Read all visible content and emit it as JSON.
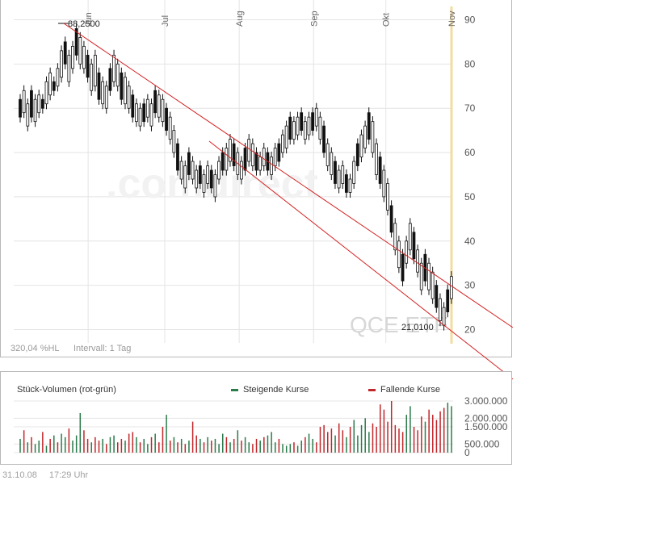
{
  "chart_data": [
    {
      "type": "candlestick",
      "title": "",
      "x_months": [
        "Jun",
        "Jul",
        "Aug",
        "Sep",
        "Okt",
        "Nov"
      ],
      "y_ticks": [
        20,
        30,
        40,
        50,
        60,
        70,
        80,
        90
      ],
      "ylim": [
        17,
        93
      ],
      "grid": true,
      "annotations": {
        "high": "88,2500",
        "low": "21,0100",
        "watermark": ".comdirect",
        "instrument": "QCE ETF",
        "range_info": "320,04 %HL",
        "interval": "Intervall: 1 Tag"
      },
      "candles": [
        [
          72,
          68
        ],
        [
          74,
          69
        ],
        [
          71,
          66
        ],
        [
          74,
          68
        ],
        [
          72,
          67
        ],
        [
          73,
          69
        ],
        [
          72,
          70
        ],
        [
          76,
          71
        ],
        [
          78,
          73
        ],
        [
          76,
          74
        ],
        [
          79,
          75
        ],
        [
          83,
          77
        ],
        [
          85,
          80
        ],
        [
          82,
          76
        ],
        [
          84,
          79
        ],
        [
          88,
          82
        ],
        [
          86,
          80
        ],
        [
          84,
          79
        ],
        [
          82,
          77
        ],
        [
          80,
          74
        ],
        [
          82,
          75
        ],
        [
          78,
          72
        ],
        [
          76,
          71
        ],
        [
          75,
          70
        ],
        [
          79,
          74
        ],
        [
          82,
          76
        ],
        [
          80,
          75
        ],
        [
          78,
          72
        ],
        [
          77,
          71
        ],
        [
          75,
          70
        ],
        [
          73,
          68
        ],
        [
          71,
          67
        ],
        [
          70,
          66
        ],
        [
          71,
          67
        ],
        [
          72,
          68
        ],
        [
          71,
          66
        ],
        [
          74,
          69
        ],
        [
          73,
          68
        ],
        [
          72,
          67
        ],
        [
          70,
          65
        ],
        [
          68,
          63
        ],
        [
          65,
          60
        ],
        [
          62,
          56
        ],
        [
          58,
          54
        ],
        [
          57,
          52
        ],
        [
          60,
          55
        ],
        [
          58,
          54
        ],
        [
          56,
          52
        ],
        [
          57,
          53
        ],
        [
          55,
          51
        ],
        [
          57,
          53
        ],
        [
          56,
          52
        ],
        [
          55,
          50
        ],
        [
          58,
          54
        ],
        [
          60,
          56
        ],
        [
          61,
          56
        ],
        [
          63,
          58
        ],
        [
          62,
          57
        ],
        [
          60,
          55
        ],
        [
          58,
          54
        ],
        [
          61,
          56
        ],
        [
          63,
          58
        ],
        [
          62,
          57
        ],
        [
          60,
          56
        ],
        [
          59,
          56
        ],
        [
          61,
          57
        ],
        [
          60,
          56
        ],
        [
          59,
          55
        ],
        [
          61,
          57
        ],
        [
          62,
          58
        ],
        [
          64,
          60
        ],
        [
          66,
          61
        ],
        [
          68,
          63
        ],
        [
          67,
          63
        ],
        [
          68,
          64
        ],
        [
          69,
          65
        ],
        [
          67,
          63
        ],
        [
          68,
          64
        ],
        [
          69,
          65
        ],
        [
          70,
          66
        ],
        [
          68,
          63
        ],
        [
          66,
          60
        ],
        [
          62,
          57
        ],
        [
          60,
          55
        ],
        [
          58,
          53
        ],
        [
          56,
          52
        ],
        [
          57,
          53
        ],
        [
          55,
          51
        ],
        [
          54,
          51
        ],
        [
          58,
          53
        ],
        [
          62,
          57
        ],
        [
          64,
          59
        ],
        [
          66,
          61
        ],
        [
          69,
          63
        ],
        [
          67,
          60
        ],
        [
          62,
          55
        ],
        [
          59,
          53
        ],
        [
          56,
          50
        ],
        [
          53,
          47
        ],
        [
          48,
          42
        ],
        [
          44,
          38
        ],
        [
          40,
          34
        ],
        [
          37,
          31
        ],
        [
          40,
          35
        ],
        [
          44,
          38
        ],
        [
          42,
          36
        ],
        [
          38,
          33
        ],
        [
          35,
          29
        ],
        [
          37,
          31
        ],
        [
          35,
          29
        ],
        [
          33,
          27
        ],
        [
          30,
          25
        ],
        [
          27,
          22
        ],
        [
          25,
          21
        ],
        [
          29,
          24
        ],
        [
          32,
          27
        ]
      ],
      "volume": {
        "label": "Stück-Volumen (rot-grün)",
        "legend": [
          "Steigende Kurse",
          "Fallende Kurse"
        ],
        "y_ticks": [
          "3.000.000",
          "2.000.000",
          "1.500.000",
          "500.000",
          "0"
        ],
        "ylim": [
          0,
          3000000
        ],
        "values": [
          800000,
          1300000,
          600000,
          900000,
          500000,
          700000,
          1200000,
          400000,
          800000,
          1000000,
          600000,
          1100000,
          900000,
          1400000,
          700000,
          1000000,
          2300000,
          1300000,
          800000,
          600000,
          900000,
          700000,
          800000,
          500000,
          900000,
          1000000,
          600000,
          800000,
          700000,
          1100000,
          1200000,
          900000,
          600000,
          800000,
          500000,
          900000,
          1100000,
          600000,
          1500000,
          2200000,
          700000,
          900000,
          600000,
          800000,
          500000,
          700000,
          1800000,
          1000000,
          800000,
          600000,
          900000,
          700000,
          800000,
          500000,
          1100000,
          900000,
          600000,
          800000,
          1300000,
          700000,
          900000,
          600000,
          500000,
          800000,
          700000,
          900000,
          1000000,
          1200000,
          600000,
          800000,
          500000,
          400000,
          500000,
          600000,
          400000,
          700000,
          900000,
          1100000,
          800000,
          600000,
          1500000,
          1600000,
          1200000,
          1400000,
          1000000,
          1700000,
          1300000,
          900000,
          1500000,
          1900000,
          1000000,
          1600000,
          2000000,
          1200000,
          1700000,
          1500000,
          2800000,
          2500000,
          1800000,
          3000000,
          1600000,
          1400000,
          1200000,
          2200000,
          2700000,
          1500000,
          1300000,
          2100000,
          1800000,
          2500000,
          2200000,
          1900000,
          2400000,
          2600000,
          2900000,
          2700000
        ],
        "rising": [
          true,
          false,
          true,
          false,
          true,
          true,
          false,
          true,
          false,
          true,
          false,
          true,
          true,
          false,
          true,
          true,
          true,
          false,
          false,
          true,
          false,
          false,
          true,
          false,
          true,
          true,
          false,
          false,
          true,
          false,
          false,
          true,
          false,
          true,
          true,
          false,
          true,
          false,
          false,
          true,
          false,
          true,
          false,
          true,
          false,
          true,
          false,
          false,
          true,
          false,
          true,
          false,
          true,
          true,
          true,
          false,
          true,
          false,
          true,
          false,
          true,
          true,
          false,
          false,
          true,
          false,
          true,
          true,
          true,
          false,
          true,
          true,
          true,
          false,
          true,
          true,
          false,
          true,
          true,
          false,
          false,
          false,
          false,
          false,
          true,
          false,
          false,
          true,
          false,
          true,
          true,
          true,
          true,
          true,
          false,
          false,
          false,
          false,
          false,
          false,
          false,
          false,
          false,
          true,
          true,
          false,
          false,
          false,
          true,
          false,
          false,
          false,
          false,
          false,
          true,
          true
        ]
      }
    }
  ],
  "footer": {
    "date": "31.10.08",
    "time": "17:29 Uhr"
  },
  "colors": {
    "rising": "#2a7a4a",
    "falling": "#c0262a",
    "trendline": "#d42020",
    "highlight": "#f3dca0",
    "grid": "#e4e4e4"
  }
}
